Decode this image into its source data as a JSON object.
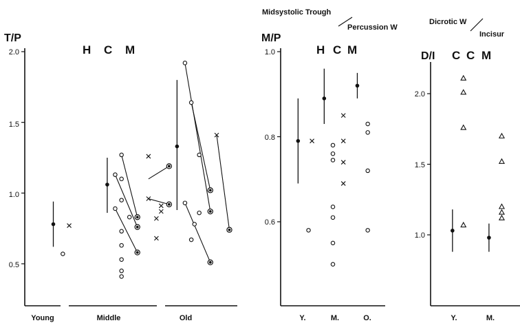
{
  "chart_data": [
    {
      "type": "scatter",
      "ylabel": "T/P",
      "group_letters": [
        "H",
        "C",
        "M"
      ],
      "ylim": [
        0.2,
        2.0
      ],
      "yticks": [
        "2.0",
        "1.5",
        "1.0",
        "0.5"
      ],
      "ytick_values": [
        2.0,
        1.5,
        1.0,
        0.5
      ],
      "categories": [
        "Young",
        "Middle",
        "Old"
      ],
      "series": [
        {
          "marker": "filled-circle",
          "points": [
            {
              "x": 0.6,
              "y": 0.78,
              "yerr": [
                0.62,
                0.94
              ]
            },
            {
              "x": 2.3,
              "y": 1.06,
              "yerr": [
                0.86,
                1.25
              ]
            },
            {
              "x": 4.5,
              "y": 1.33,
              "yerr": [
                0.88,
                1.8
              ]
            }
          ]
        },
        {
          "marker": "open-circle",
          "points": [
            {
              "x": 0.9,
              "y": 0.57
            },
            {
              "x": 2.55,
              "y": 1.13
            },
            {
              "x": 2.55,
              "y": 0.89
            },
            {
              "x": 2.75,
              "y": 1.27
            },
            {
              "x": 2.75,
              "y": 1.1
            },
            {
              "x": 2.75,
              "y": 0.95
            },
            {
              "x": 2.75,
              "y": 0.73
            },
            {
              "x": 2.75,
              "y": 0.63
            },
            {
              "x": 2.75,
              "y": 0.53
            },
            {
              "x": 2.75,
              "y": 0.45
            },
            {
              "x": 2.75,
              "y": 0.41
            },
            {
              "x": 3.0,
              "y": 0.83
            },
            {
              "x": 4.75,
              "y": 1.92
            },
            {
              "x": 4.75,
              "y": 0.93
            },
            {
              "x": 4.95,
              "y": 1.64
            },
            {
              "x": 4.95,
              "y": 0.67
            },
            {
              "x": 5.05,
              "y": 0.78
            },
            {
              "x": 5.2,
              "y": 1.27
            },
            {
              "x": 5.2,
              "y": 0.86
            }
          ]
        },
        {
          "marker": "cross",
          "points": [
            {
              "x": 1.1,
              "y": 0.77
            },
            {
              "x": 3.6,
              "y": 1.26
            },
            {
              "x": 3.6,
              "y": 0.96
            },
            {
              "x": 3.85,
              "y": 0.82
            },
            {
              "x": 3.85,
              "y": 0.68
            },
            {
              "x": 4.0,
              "y": 0.87
            },
            {
              "x": 4.0,
              "y": 0.91
            },
            {
              "x": 5.75,
              "y": 1.41
            }
          ]
        },
        {
          "marker": "ring",
          "points": [
            {
              "x": 3.25,
              "y": 0.83
            },
            {
              "x": 3.25,
              "y": 0.76
            },
            {
              "x": 3.25,
              "y": 0.58
            },
            {
              "x": 4.25,
              "y": 1.19
            },
            {
              "x": 4.25,
              "y": 0.92
            },
            {
              "x": 5.55,
              "y": 1.02
            },
            {
              "x": 5.55,
              "y": 0.87
            },
            {
              "x": 5.55,
              "y": 0.51
            },
            {
              "x": 6.15,
              "y": 0.74
            }
          ]
        }
      ],
      "connections": [
        [
          [
            2.55,
            1.13
          ],
          [
            3.25,
            0.76
          ]
        ],
        [
          [
            2.55,
            0.89
          ],
          [
            3.25,
            0.58
          ]
        ],
        [
          [
            2.75,
            1.27
          ],
          [
            3.25,
            0.83
          ]
        ],
        [
          [
            3.6,
            1.1
          ],
          [
            4.25,
            1.19
          ]
        ],
        [
          [
            3.6,
            0.96
          ],
          [
            4.25,
            0.92
          ]
        ],
        [
          [
            4.75,
            1.92
          ],
          [
            5.55,
            0.87
          ]
        ],
        [
          [
            4.75,
            0.93
          ],
          [
            5.55,
            0.51
          ]
        ],
        [
          [
            4.95,
            1.64
          ],
          [
            5.55,
            1.02
          ]
        ],
        [
          [
            5.75,
            1.41
          ],
          [
            6.15,
            0.74
          ]
        ]
      ],
      "dividers": [
        1.4,
        4.05
      ]
    },
    {
      "type": "scatter",
      "ylabel": "M/P",
      "title_line1": "Midsystolic Trough",
      "title_line2": "Percussion W",
      "group_letters": [
        "H",
        "C",
        "M"
      ],
      "ylim": [
        0.4,
        1.0
      ],
      "yticks": [
        "1.0",
        "0.8",
        "0.6"
      ],
      "ytick_values": [
        1.0,
        0.8,
        0.6
      ],
      "categories": [
        "Y.",
        "M.",
        "O."
      ],
      "series": [
        {
          "marker": "filled-circle",
          "points": [
            {
              "x": 0.0,
              "y": 0.79,
              "yerr": [
                0.69,
                0.89
              ]
            },
            {
              "x": 0.75,
              "y": 0.89,
              "yerr": [
                0.83,
                0.96
              ]
            },
            {
              "x": 1.7,
              "y": 0.92,
              "yerr": [
                0.89,
                0.95
              ]
            }
          ]
        },
        {
          "marker": "open-circle",
          "points": [
            {
              "x": 0.3,
              "y": 0.58
            },
            {
              "x": 1.0,
              "y": 0.78
            },
            {
              "x": 1.0,
              "y": 0.76
            },
            {
              "x": 1.0,
              "y": 0.745
            },
            {
              "x": 1.0,
              "y": 0.635
            },
            {
              "x": 1.0,
              "y": 0.61
            },
            {
              "x": 1.0,
              "y": 0.55
            },
            {
              "x": 1.0,
              "y": 0.5
            },
            {
              "x": 2.0,
              "y": 0.83
            },
            {
              "x": 2.0,
              "y": 0.81
            },
            {
              "x": 2.0,
              "y": 0.72
            },
            {
              "x": 2.0,
              "y": 0.58
            }
          ]
        },
        {
          "marker": "cross",
          "points": [
            {
              "x": 0.4,
              "y": 0.79
            },
            {
              "x": 1.3,
              "y": 0.85
            },
            {
              "x": 1.3,
              "y": 0.79
            },
            {
              "x": 1.3,
              "y": 0.74
            },
            {
              "x": 1.3,
              "y": 0.69
            }
          ]
        }
      ]
    },
    {
      "type": "scatter",
      "ylabel": "D/I",
      "title_line1": "Dicrotic W",
      "title_line2": "Incisur",
      "group_letters": [
        "C",
        "C",
        "M"
      ],
      "ylim": [
        0.5,
        2.3
      ],
      "yticks": [
        "2.0",
        "1.5",
        "1.0"
      ],
      "ytick_values": [
        2.0,
        1.5,
        1.0
      ],
      "categories": [
        "Y.",
        "M."
      ],
      "series": [
        {
          "marker": "filled-circle",
          "points": [
            {
              "x": 0.0,
              "y": 1.03,
              "yerr": [
                0.88,
                1.18
              ]
            },
            {
              "x": 1.0,
              "y": 0.98,
              "yerr": [
                0.88,
                1.08
              ]
            }
          ]
        },
        {
          "marker": "triangle",
          "points": [
            {
              "x": 0.3,
              "y": 2.11
            },
            {
              "x": 0.3,
              "y": 2.01
            },
            {
              "x": 0.3,
              "y": 1.76
            },
            {
              "x": 0.3,
              "y": 1.07
            },
            {
              "x": 1.35,
              "y": 1.7
            },
            {
              "x": 1.35,
              "y": 1.52
            },
            {
              "x": 1.35,
              "y": 1.2
            },
            {
              "x": 1.35,
              "y": 1.16
            },
            {
              "x": 1.35,
              "y": 1.12
            }
          ]
        }
      ]
    }
  ]
}
